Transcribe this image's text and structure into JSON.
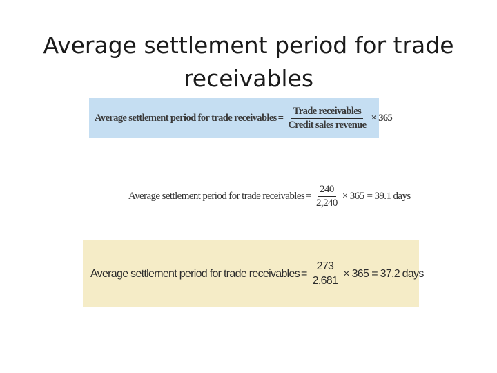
{
  "slide": {
    "title_line1": "Average settlement period for trade",
    "title_line2": "receivables"
  },
  "formulas": [
    {
      "label": "Average settlement period for trade receivables",
      "equals": "=",
      "numerator": "Trade receivables",
      "denominator": "Credit sales revenue",
      "multiplier": "× 365",
      "background": "#c5def2"
    },
    {
      "label": "Average settlement period for trade receivables",
      "equals": "=",
      "numerator": "240",
      "denominator": "2,240",
      "multiplier": "× 365",
      "result": "= 39.1 days",
      "background": "#ffffff"
    },
    {
      "label": "Average settlement period for trade receivables",
      "equals": "=",
      "numerator": "273",
      "denominator": "2,681",
      "multiplier": "× 365",
      "result": "= 37.2 days",
      "background": "#f5ecc7"
    }
  ]
}
